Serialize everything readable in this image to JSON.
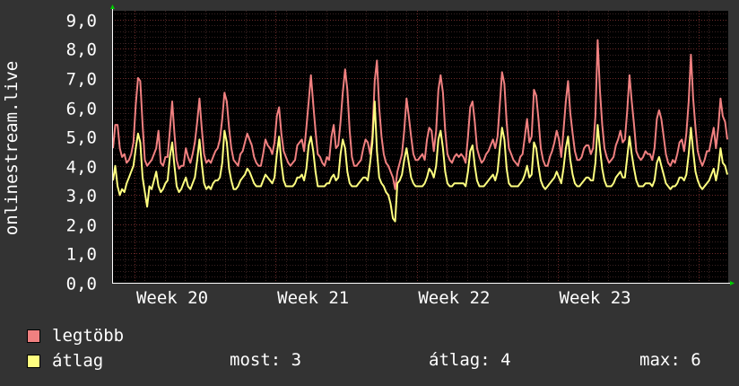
{
  "chart_data": {
    "type": "line",
    "ylabel": "onlinestream.live",
    "ylim": [
      0,
      9.3
    ],
    "y_ticks": [
      "0,0",
      "1,0",
      "2,0",
      "3,0",
      "4,0",
      "5,0",
      "6,0",
      "7,0",
      "8,0",
      "9,0"
    ],
    "x_ticks": [
      "Week 20",
      "Week 21",
      "Week 22",
      "Week 23"
    ],
    "series": [
      {
        "name": "legtöbb",
        "color": "#f08080",
        "values": [
          4.6,
          5.4,
          5.4,
          4.6,
          4.3,
          4.4,
          4.1,
          4.2,
          4.4,
          4.8,
          6.1,
          7.0,
          6.9,
          5.4,
          4.2,
          4.0,
          4.1,
          4.2,
          4.4,
          4.6,
          5.2,
          4.1,
          4.0,
          4.3,
          4.3,
          5.2,
          6.2,
          5.1,
          4.2,
          3.9,
          4.0,
          4.0,
          4.6,
          4.3,
          4.1,
          4.4,
          4.8,
          5.5,
          6.3,
          5.3,
          4.4,
          4.1,
          4.2,
          4.1,
          4.3,
          4.5,
          4.6,
          4.9,
          5.6,
          6.5,
          6.2,
          5.3,
          4.6,
          4.2,
          4.1,
          4.0,
          4.4,
          4.5,
          4.8,
          5.1,
          4.9,
          4.7,
          4.3,
          4.1,
          4.0,
          4.0,
          4.4,
          4.9,
          4.7,
          4.6,
          4.4,
          4.8,
          5.7,
          6.0,
          5.1,
          4.5,
          4.3,
          4.1,
          4.0,
          4.1,
          4.2,
          4.7,
          4.8,
          4.9,
          4.5,
          5.3,
          6.2,
          7.1,
          6.1,
          5.2,
          4.4,
          4.3,
          4.1,
          4.0,
          4.3,
          4.2,
          5.0,
          5.4,
          4.6,
          4.7,
          5.5,
          6.5,
          7.3,
          6.6,
          5.2,
          4.3,
          4.0,
          4.0,
          4.1,
          4.2,
          4.6,
          4.9,
          4.8,
          4.4,
          5.0,
          6.9,
          7.6,
          6.0,
          5.0,
          4.4,
          4.1,
          4.0,
          3.8,
          3.6,
          3.2,
          3.8,
          4.1,
          4.4,
          5.2,
          6.3,
          5.7,
          5.0,
          4.4,
          4.2,
          4.2,
          4.3,
          4.4,
          4.2,
          4.9,
          5.3,
          5.2,
          4.5,
          5.2,
          6.6,
          7.1,
          6.5,
          5.2,
          4.4,
          4.2,
          4.1,
          4.3,
          4.4,
          4.3,
          4.4,
          4.3,
          4.1,
          5.0,
          6.0,
          6.2,
          5.5,
          4.6,
          4.3,
          4.1,
          4.2,
          4.4,
          4.5,
          4.7,
          4.9,
          4.6,
          5.0,
          6.1,
          7.2,
          6.8,
          5.5,
          4.6,
          4.4,
          4.2,
          4.1,
          4.0,
          4.3,
          4.4,
          5.0,
          5.6,
          4.8,
          5.0,
          6.6,
          6.4,
          5.6,
          4.6,
          4.2,
          4.0,
          4.0,
          4.3,
          4.5,
          4.8,
          5.2,
          4.9,
          4.3,
          5.2,
          6.2,
          6.9,
          5.8,
          5.1,
          4.5,
          4.2,
          4.2,
          4.3,
          4.6,
          4.7,
          4.7,
          4.4,
          4.6,
          5.7,
          8.3,
          6.6,
          5.4,
          4.6,
          4.3,
          4.1,
          4.2,
          4.3,
          4.7,
          4.9,
          5.2,
          4.8,
          4.9,
          5.9,
          7.1,
          6.2,
          5.4,
          4.5,
          4.3,
          4.2,
          4.3,
          4.5,
          4.4,
          4.4,
          4.2,
          4.6,
          5.6,
          5.9,
          5.6,
          5.0,
          4.4,
          4.1,
          4.0,
          4.2,
          4.1,
          4.4,
          4.8,
          4.9,
          4.5,
          5.1,
          6.2,
          7.8,
          6.3,
          5.3,
          4.5,
          4.2,
          4.0,
          4.2,
          4.5,
          4.5,
          4.9,
          5.3,
          4.6,
          5.3,
          6.3,
          5.7,
          5.5,
          4.9
        ]
      },
      {
        "name": "átlag",
        "color": "#ffff80",
        "values": [
          3.5,
          4.0,
          3.3,
          3.0,
          3.2,
          3.1,
          3.4,
          3.6,
          3.8,
          4.0,
          4.6,
          5.1,
          4.8,
          3.6,
          3.1,
          2.6,
          3.3,
          3.2,
          3.5,
          3.8,
          3.3,
          3.1,
          3.2,
          3.4,
          3.5,
          4.3,
          4.8,
          4.0,
          3.3,
          3.1,
          3.2,
          3.4,
          3.6,
          3.3,
          3.2,
          3.4,
          3.6,
          4.2,
          4.9,
          4.1,
          3.4,
          3.2,
          3.3,
          3.2,
          3.4,
          3.5,
          3.5,
          3.6,
          4.1,
          5.2,
          4.8,
          3.9,
          3.5,
          3.2,
          3.2,
          3.3,
          3.5,
          3.6,
          3.7,
          3.9,
          3.8,
          3.6,
          3.4,
          3.3,
          3.3,
          3.3,
          3.5,
          3.7,
          3.6,
          3.5,
          3.4,
          3.6,
          4.4,
          5.0,
          4.1,
          3.5,
          3.3,
          3.3,
          3.3,
          3.3,
          3.4,
          3.6,
          3.6,
          3.7,
          3.5,
          3.9,
          4.7,
          5.0,
          4.5,
          3.8,
          3.3,
          3.3,
          3.3,
          3.3,
          3.4,
          3.4,
          3.6,
          3.7,
          3.5,
          3.6,
          4.4,
          4.9,
          4.6,
          3.8,
          3.4,
          3.3,
          3.3,
          3.3,
          3.4,
          3.5,
          3.6,
          3.6,
          3.5,
          4.1,
          4.8,
          6.2,
          4.5,
          3.6,
          3.4,
          3.3,
          3.1,
          3.0,
          2.7,
          2.2,
          2.1,
          3.4,
          3.5,
          3.7,
          4.2,
          4.6,
          4.1,
          3.6,
          3.4,
          3.3,
          3.3,
          3.3,
          3.3,
          3.4,
          3.6,
          3.9,
          3.8,
          3.6,
          4.0,
          4.9,
          5.2,
          4.6,
          3.8,
          3.4,
          3.3,
          3.3,
          3.4,
          3.4,
          3.4,
          3.4,
          3.4,
          3.3,
          3.8,
          4.5,
          4.7,
          4.0,
          3.5,
          3.3,
          3.3,
          3.3,
          3.4,
          3.5,
          3.6,
          3.7,
          3.5,
          3.8,
          4.6,
          5.3,
          4.9,
          3.9,
          3.4,
          3.3,
          3.3,
          3.3,
          3.3,
          3.4,
          3.5,
          3.7,
          4.0,
          3.6,
          3.7,
          4.8,
          4.6,
          4.0,
          3.5,
          3.3,
          3.2,
          3.3,
          3.4,
          3.5,
          3.6,
          3.8,
          3.6,
          3.4,
          3.9,
          4.6,
          5.0,
          4.2,
          3.7,
          3.4,
          3.3,
          3.3,
          3.4,
          3.5,
          3.6,
          3.6,
          3.5,
          3.5,
          4.1,
          5.4,
          4.6,
          3.9,
          3.5,
          3.3,
          3.3,
          3.3,
          3.4,
          3.6,
          3.7,
          3.8,
          3.6,
          3.6,
          4.3,
          5.0,
          4.4,
          3.9,
          3.5,
          3.3,
          3.3,
          3.3,
          3.4,
          3.4,
          3.4,
          3.3,
          3.5,
          4.1,
          4.3,
          4.0,
          3.7,
          3.4,
          3.3,
          3.2,
          3.3,
          3.3,
          3.4,
          3.6,
          3.6,
          3.5,
          3.7,
          4.4,
          5.3,
          4.5,
          3.8,
          3.5,
          3.3,
          3.2,
          3.3,
          3.4,
          3.5,
          3.7,
          3.9,
          3.5,
          3.9,
          4.6,
          4.1,
          4.0,
          3.7
        ]
      }
    ],
    "legend": [
      {
        "label": "legtöbb",
        "color": "#f08080"
      },
      {
        "label": "átlag",
        "color": "#ffff80"
      }
    ],
    "grid": true
  },
  "stats": {
    "most": "most: 3",
    "atlag": "átlag: 4",
    "max": "max: 6"
  }
}
